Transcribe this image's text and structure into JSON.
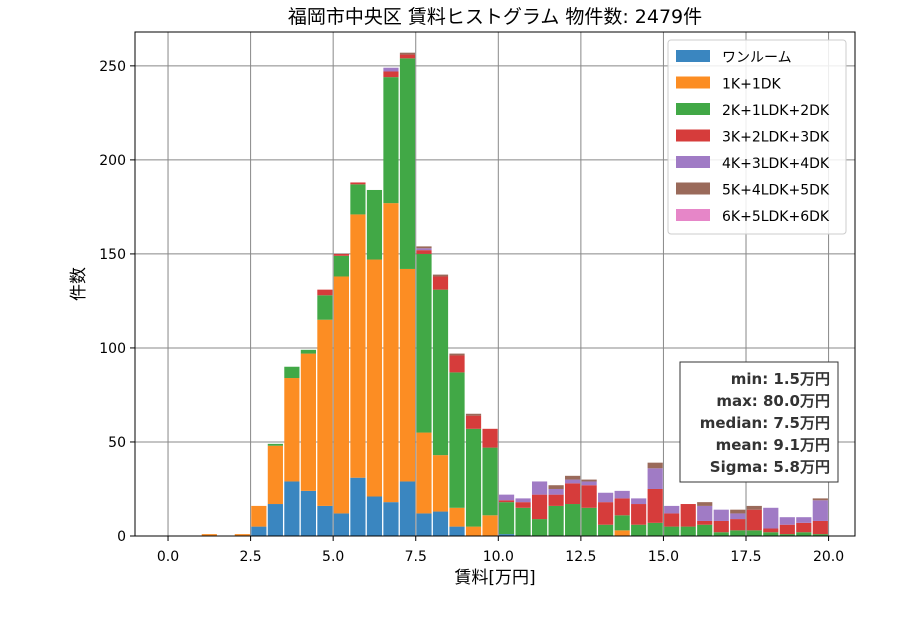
{
  "chart_data": {
    "type": "bar",
    "stacked": true,
    "title": "福岡市中央区 賃料ヒストグラム  物件数: 2479件",
    "xlabel": "賃料[万円]",
    "ylabel": "件数",
    "xlim": [
      -1.0,
      20.8
    ],
    "ylim": [
      0,
      268
    ],
    "xticks": [
      0.0,
      2.5,
      5.0,
      7.5,
      10.0,
      12.5,
      15.0,
      17.5,
      20.0
    ],
    "xtick_labels": [
      "0.0",
      "2.5",
      "5.0",
      "7.5",
      "10.0",
      "12.5",
      "15.0",
      "17.5",
      "20.0"
    ],
    "yticks": [
      0,
      50,
      100,
      150,
      200,
      250
    ],
    "ytick_labels": [
      "0",
      "50",
      "100",
      "150",
      "200",
      "250"
    ],
    "grid": true,
    "legend_position": "top-right",
    "bin_width": 0.5,
    "x": [
      1.25,
      1.75,
      2.25,
      2.75,
      3.25,
      3.75,
      4.25,
      4.75,
      5.25,
      5.75,
      6.25,
      6.75,
      7.25,
      7.75,
      8.25,
      8.75,
      9.25,
      9.75,
      10.25,
      10.75,
      11.25,
      11.75,
      12.25,
      12.75,
      13.25,
      13.75,
      14.25,
      14.75,
      15.25,
      15.75,
      16.25,
      16.75,
      17.25,
      17.75,
      18.25,
      18.75,
      19.25,
      19.75
    ],
    "series": [
      {
        "name": "ワンルーム",
        "color": "#3a86c0",
        "values": [
          0,
          0,
          0,
          5,
          17,
          29,
          24,
          16,
          12,
          31,
          21,
          18,
          29,
          12,
          13,
          5,
          0,
          0,
          1,
          0,
          0,
          0,
          0,
          0,
          0,
          0,
          0,
          0,
          0,
          0,
          0,
          0,
          0,
          0,
          0,
          0,
          0,
          0
        ]
      },
      {
        "name": "1K+1DK",
        "color": "#fc8d23",
        "values": [
          1,
          0,
          1,
          11,
          31,
          55,
          73,
          99,
          126,
          140,
          126,
          159,
          113,
          43,
          30,
          10,
          5,
          11,
          0,
          0,
          0,
          0,
          0,
          0,
          0,
          3,
          0,
          0,
          0,
          0,
          0,
          0,
          0,
          0,
          0,
          0,
          0,
          0
        ]
      },
      {
        "name": "2K+1LDK+2DK",
        "color": "#41a846",
        "values": [
          0,
          0,
          0,
          0,
          1,
          6,
          2,
          13,
          11,
          16,
          37,
          67,
          112,
          95,
          88,
          72,
          52,
          36,
          17,
          15,
          9,
          16,
          17,
          15,
          6,
          8,
          6,
          7,
          5,
          5,
          6,
          2,
          3,
          3,
          2,
          1,
          2,
          1
        ]
      },
      {
        "name": "3K+2LDK+3DK",
        "color": "#d63c3b",
        "values": [
          0,
          0,
          0,
          0,
          0,
          0,
          0,
          3,
          1,
          1,
          0,
          3,
          2,
          2,
          7,
          9,
          7,
          10,
          1,
          3,
          13,
          6,
          11,
          12,
          12,
          9,
          11,
          18,
          7,
          12,
          2,
          6,
          6,
          11,
          2,
          5,
          5,
          7
        ]
      },
      {
        "name": "4K+3LDK+4DK",
        "color": "#a07bc5",
        "values": [
          0,
          0,
          0,
          0,
          0,
          0,
          0,
          0,
          0,
          0,
          0,
          2,
          0,
          1,
          0,
          0,
          0,
          0,
          3,
          2,
          7,
          3,
          2,
          2,
          5,
          4,
          3,
          11,
          4,
          0,
          8,
          6,
          3,
          0,
          11,
          4,
          3,
          11
        ]
      },
      {
        "name": "5K+4LDK+5DK",
        "color": "#9a6a5a",
        "values": [
          0,
          0,
          0,
          0,
          0,
          0,
          0,
          0,
          0,
          0,
          0,
          0,
          1,
          1,
          1,
          1,
          1,
          0,
          0,
          0,
          0,
          2,
          2,
          1,
          0,
          0,
          0,
          3,
          0,
          0,
          2,
          0,
          2,
          2,
          0,
          0,
          0,
          1
        ]
      },
      {
        "name": "6K+5LDK+6DK",
        "color": "#e686c8",
        "values": [
          0,
          0,
          0,
          0,
          0,
          0,
          0,
          0,
          0,
          0,
          0,
          0,
          0,
          0,
          0,
          0,
          0,
          0,
          0,
          0,
          0,
          0,
          0,
          0,
          0,
          0,
          0,
          0,
          0,
          0,
          0,
          0,
          0,
          0,
          0,
          0,
          0,
          0
        ]
      }
    ],
    "stats": [
      "min: 1.5万円",
      "max: 80.0万円",
      "median: 7.5万円",
      "mean: 9.1万円",
      "Sigma: 5.8万円"
    ]
  }
}
